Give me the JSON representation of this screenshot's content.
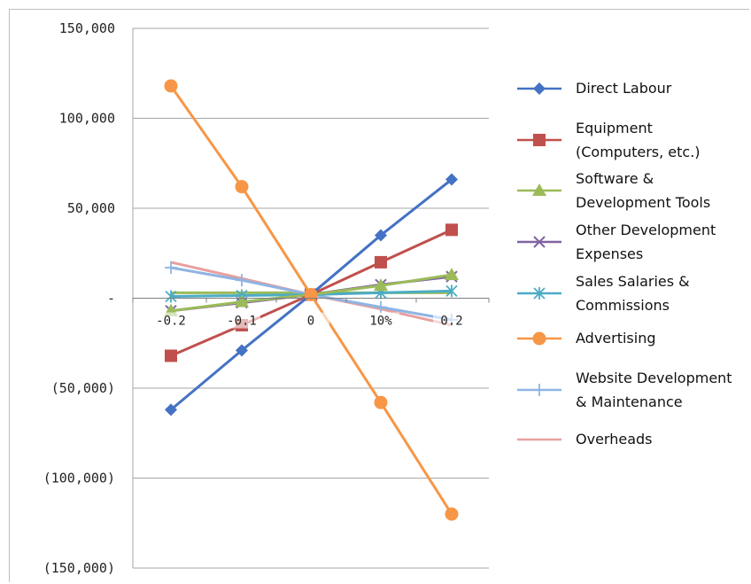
{
  "chart_data": {
    "type": "line",
    "categories": [
      "-0.2",
      "-0.1",
      "0",
      "10%",
      "0.2"
    ],
    "ytick_labels": [
      "150,000",
      "100,000",
      "50,000",
      "-",
      "(50,000)",
      "(100,000)",
      "(150,000)"
    ],
    "ytick_values": [
      150000,
      100000,
      50000,
      0,
      -50000,
      -100000,
      -150000
    ],
    "ylim": [
      -150000,
      150000
    ],
    "grid": true,
    "legend_position": "right",
    "series": [
      {
        "name": "Direct Labour",
        "lines": [
          "Direct Labour"
        ],
        "color": "#4472c4",
        "marker": "diamond",
        "values": [
          -62000,
          -29000,
          2000,
          35000,
          66000
        ]
      },
      {
        "name": "Equipment (Computers, etc.)",
        "lines": [
          "Equipment",
          "(Computers, etc.)"
        ],
        "color": "#c0504d",
        "marker": "square",
        "values": [
          -32000,
          -15000,
          2000,
          20000,
          38000
        ]
      },
      {
        "name": "Software & Development Tools",
        "lines": [
          "Software &",
          "Development Tools"
        ],
        "color": "#9bbb59",
        "marker": "triangle",
        "values": [
          -7000,
          -2000,
          2000,
          7000,
          13000
        ]
      },
      {
        "name": "Other Development Expenses",
        "lines": [
          "Other Development",
          "Expenses"
        ],
        "color": "#8064a2",
        "marker": "x",
        "values": [
          -7000,
          -2500,
          2000,
          7500,
          12000
        ]
      },
      {
        "name": "Sales Salaries & Commissions",
        "lines": [
          "Sales Salaries &",
          "Commissions"
        ],
        "color": "#4bacc6",
        "marker": "star",
        "values": [
          1000,
          1500,
          2000,
          3000,
          4000
        ]
      },
      {
        "name": "Advertising",
        "lines": [
          "Advertising"
        ],
        "color": "#f79646",
        "marker": "circle",
        "values": [
          118000,
          62000,
          2000,
          -58000,
          -120000
        ]
      },
      {
        "name": "Website Development & Maintenance",
        "lines": [
          "Website Development",
          "& Maintenance"
        ],
        "color": "#8eb4e3",
        "marker": "plus",
        "values": [
          17000,
          10000,
          2000,
          -5000,
          -12000
        ]
      },
      {
        "name": "Overheads",
        "lines": [
          "Overheads"
        ],
        "color": "#e6a0a0",
        "marker": "none",
        "values": [
          20000,
          11000,
          2000,
          -6000,
          -15000
        ]
      }
    ],
    "extra_flat_lines": [
      {
        "color": "#9bbb59",
        "values": [
          3000,
          3000,
          3000,
          3000,
          3000
        ]
      }
    ]
  }
}
